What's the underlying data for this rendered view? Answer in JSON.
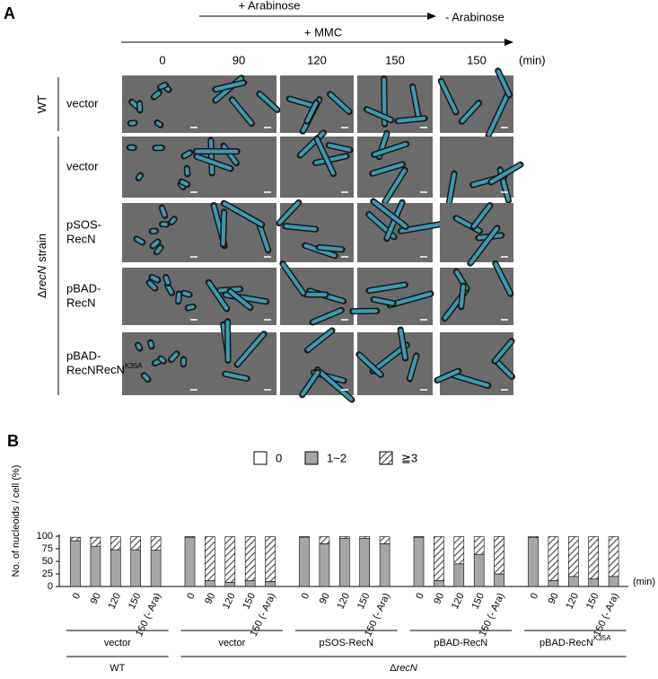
{
  "panel_a": {
    "label": "A",
    "arabinose_on": "+ Arabinose",
    "arabinose_off": "- Arabinose",
    "mmc": "+ MMC",
    "time_points": [
      "0",
      "90",
      "120",
      "150",
      "150"
    ],
    "time_unit": "(min)",
    "strains": [
      {
        "text": "WT"
      },
      {
        "prefix": "Δ",
        "italic": "recN",
        "suffix": "strain"
      }
    ],
    "rows": [
      {
        "lines": [
          "vector"
        ]
      },
      {
        "lines": [
          "vector"
        ]
      },
      {
        "lines": [
          "pSOS-",
          "RecN"
        ]
      },
      {
        "lines": [
          "pBAD-",
          "RecN"
        ]
      },
      {
        "lines": [
          "pBAD-",
          "RecN"
        ],
        "sup": "K35A"
      }
    ]
  },
  "chart_data": {
    "type": "stacked-bar",
    "label": "B",
    "y_label": "No. of nucleoids / cell (%)",
    "x_unit": "(min)",
    "categories": [
      "0",
      "90",
      "120",
      "150",
      "150 (- Ara)",
      "0",
      "90",
      "120",
      "150",
      "150 (- Ara)",
      "0",
      "90",
      "120",
      "150",
      "150 (- Ara)",
      "0",
      "90",
      "120",
      "150",
      "150 (- Ara)",
      "0",
      "90",
      "120",
      "150",
      "150 (- Ara)"
    ],
    "groups": [
      {
        "text": "vector"
      },
      {
        "text": "vector"
      },
      {
        "text": "pSOS-RecN"
      },
      {
        "text": "pBAD-RecN"
      },
      {
        "text": "pBAD-RecN",
        "sup": "K35A"
      }
    ],
    "strains": [
      {
        "text": "WT"
      },
      {
        "prefix": "Δ",
        "italic": "recN"
      }
    ],
    "series": [
      {
        "name": "0",
        "color": "#ffffff",
        "values": [
          0,
          0,
          0,
          0,
          0,
          0,
          0,
          0,
          0,
          0,
          0,
          0,
          0,
          0,
          0,
          0,
          0,
          0,
          0,
          0,
          0,
          0,
          0,
          0,
          0
        ]
      },
      {
        "name": "1~2",
        "color": "#a6a6a6",
        "values": [
          91,
          80,
          73,
          73,
          72,
          98,
          12,
          8,
          12,
          10,
          98,
          85,
          96,
          96,
          85,
          98,
          12,
          45,
          64,
          25,
          97,
          12,
          20,
          15,
          20
        ]
      },
      {
        "name": "≧3",
        "color": "#555555",
        "pattern": "hatch",
        "values": [
          7,
          18,
          26,
          26,
          27,
          1,
          87,
          91,
          87,
          89,
          1,
          14,
          3,
          3,
          14,
          1,
          87,
          54,
          35,
          74,
          2,
          87,
          79,
          84,
          79
        ]
      }
    ],
    "ylim": [
      0,
      100
    ],
    "yticks": [
      0,
      25,
      50,
      75,
      100
    ]
  }
}
